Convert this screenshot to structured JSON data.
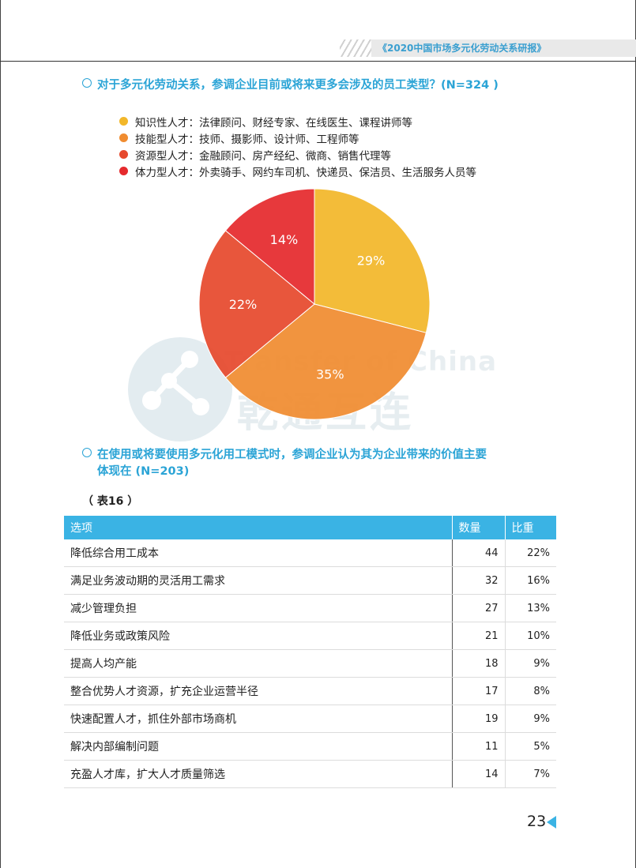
{
  "header": {
    "title": "《2020中国市场多元化劳动关系研报》"
  },
  "question1": {
    "text": "对于多元化劳动关系，参调企业目前或将来更多会涉及的员工类型？(N=324 )"
  },
  "legend": [
    {
      "label": "知识性人才：法律顾问、财经专家、在线医生、课程讲师等",
      "color": "#f2b72a"
    },
    {
      "label": "技能型人才：技师、摄影师、设计师、工程师等",
      "color": "#f08c30"
    },
    {
      "label": "资源型人才：金融顾问、房产经纪、微商、销售代理等",
      "color": "#e6492d"
    },
    {
      "label": "体力型人才：外卖骑手、网约车司机、快递员、保洁员、生活服务人员等",
      "color": "#e52a2d"
    }
  ],
  "chart_data": {
    "type": "pie",
    "categories": [
      "知识性人才",
      "技能型人才",
      "资源型人才",
      "体力型人才"
    ],
    "values": [
      29,
      35,
      22,
      14
    ],
    "labels": [
      "29%",
      "35%",
      "22%",
      "14%"
    ],
    "colors": [
      "#f2b72a",
      "#f08c30",
      "#e6492d",
      "#e52a2d"
    ]
  },
  "watermark": {
    "latin": "Transfer of China",
    "cn": "乾通互连"
  },
  "question2": {
    "line1": "在使用或将要使用多元化用工模式时，参调企业认为其为企业带来的价值主要",
    "line2": "体现在 (N=203)"
  },
  "table": {
    "label": "（ 表16 ）",
    "headers": [
      "选项",
      "数量",
      "比重"
    ],
    "rows": [
      {
        "option": "降低综合用工成本",
        "count": "44",
        "ratio": "22%"
      },
      {
        "option": "满足业务波动期的灵活用工需求",
        "count": "32",
        "ratio": "16%"
      },
      {
        "option": "减少管理负担",
        "count": "27",
        "ratio": "13%"
      },
      {
        "option": "降低业务或政策风险",
        "count": "21",
        "ratio": "10%"
      },
      {
        "option": "提高人均产能",
        "count": "18",
        "ratio": "9%"
      },
      {
        "option": "整合优势人才资源，扩充企业运营半径",
        "count": "17",
        "ratio": "8%"
      },
      {
        "option": "快速配置人才，抓住外部市场商机",
        "count": "19",
        "ratio": "9%"
      },
      {
        "option": "解决内部编制问题",
        "count": "11",
        "ratio": "5%"
      },
      {
        "option": "充盈人才库，扩大人才质量筛选",
        "count": "14",
        "ratio": "7%"
      }
    ]
  },
  "page_number": "23"
}
